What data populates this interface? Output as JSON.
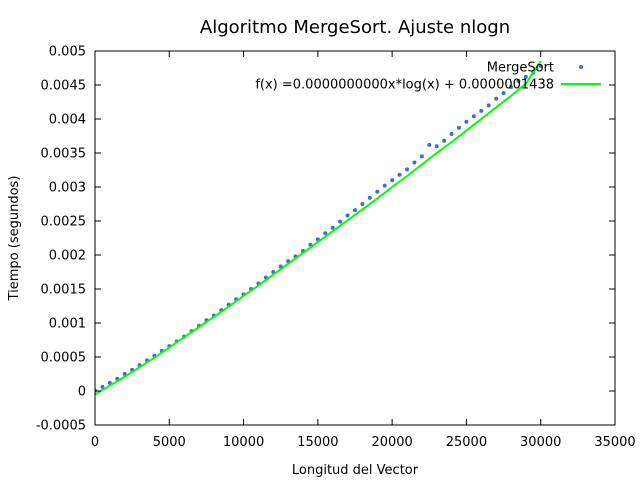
{
  "chart_data": {
    "type": "scatter",
    "title": "Algoritmo MergeSort. Ajuste nlogn",
    "xlabel": "Longitud del Vector",
    "ylabel": "Tiempo (segundos)",
    "xlim": [
      0,
      35000
    ],
    "ylim": [
      -0.0005,
      0.005
    ],
    "xticks": [
      0,
      5000,
      10000,
      15000,
      20000,
      25000,
      30000,
      35000
    ],
    "xtick_labels": [
      "0",
      "5000",
      "10000",
      "15000",
      "20000",
      "25000",
      "30000",
      "35000"
    ],
    "yticks": [
      -0.0005,
      0,
      0.0005,
      0.001,
      0.0015,
      0.002,
      0.0025,
      0.003,
      0.0035,
      0.004,
      0.0045,
      0.005
    ],
    "ytick_labels": [
      "-0.0005",
      "0",
      "0.0005",
      "0.001",
      "0.0015",
      "0.002",
      "0.0025",
      "0.003",
      "0.0035",
      "0.004",
      "0.0045",
      "0.005"
    ],
    "grid": false,
    "legend_position": "top-right",
    "series": [
      {
        "name": "MergeSort",
        "kind": "points",
        "color": "#4169e1",
        "x": [
          0,
          500,
          1000,
          1500,
          2000,
          2500,
          3000,
          3500,
          4000,
          4500,
          5000,
          5500,
          6000,
          6500,
          7000,
          7500,
          8000,
          8500,
          9000,
          9500,
          10000,
          10500,
          11000,
          11500,
          12000,
          12500,
          13000,
          13500,
          14000,
          14500,
          15000,
          15500,
          16000,
          16500,
          17000,
          17500,
          18000,
          18500,
          19000,
          19500,
          20000,
          20500,
          21000,
          21500,
          22000,
          22500,
          23000,
          23500,
          24000,
          24500,
          25000,
          25500,
          26000,
          26500,
          27000,
          27500,
          28000,
          28500,
          29000,
          29500,
          30000
        ],
        "y": [
          1e-05,
          6e-05,
          0.00012,
          0.00018,
          0.00025,
          0.00031,
          0.00038,
          0.00045,
          0.00052,
          0.00059,
          0.00066,
          0.00073,
          0.0008,
          0.00088,
          0.00096,
          0.00104,
          0.00111,
          0.00119,
          0.00127,
          0.00135,
          0.00142,
          0.0015,
          0.00158,
          0.00167,
          0.00175,
          0.00183,
          0.00191,
          0.00198,
          0.00206,
          0.00215,
          0.00223,
          0.00232,
          0.0024,
          0.00249,
          0.00258,
          0.00266,
          0.00275,
          0.00284,
          0.00293,
          0.00302,
          0.0031,
          0.00318,
          0.00326,
          0.00336,
          0.00345,
          0.00362,
          0.0036,
          0.00368,
          0.00378,
          0.00387,
          0.00396,
          0.00404,
          0.00412,
          0.0042,
          0.0043,
          0.00438,
          0.00447,
          0.00456,
          0.00462,
          0.00468,
          0.00478
        ]
      },
      {
        "name": "f(x) =0.0000000000x*log(x) + 0.0000001438",
        "kind": "line",
        "color": "#00ff00",
        "x": [
          0,
          1000,
          2000,
          3000,
          4000,
          5000,
          6000,
          7000,
          8000,
          9000,
          10000,
          11000,
          12000,
          13000,
          14000,
          15000,
          16000,
          17000,
          18000,
          19000,
          20000,
          21000,
          22000,
          23000,
          24000,
          25000,
          26000,
          27000,
          28000,
          29000,
          30000
        ],
        "y": [
          -5e-05,
          8e-05,
          0.00021,
          0.00035,
          0.00049,
          0.00064,
          0.00079,
          0.00094,
          0.00109,
          0.00124,
          0.0014,
          0.00155,
          0.00171,
          0.00187,
          0.00203,
          0.00219,
          0.00235,
          0.00251,
          0.00267,
          0.00283,
          0.003,
          0.00316,
          0.00333,
          0.0035,
          0.00366,
          0.00383,
          0.004,
          0.00417,
          0.00434,
          0.00452,
          0.00485
        ]
      }
    ]
  }
}
